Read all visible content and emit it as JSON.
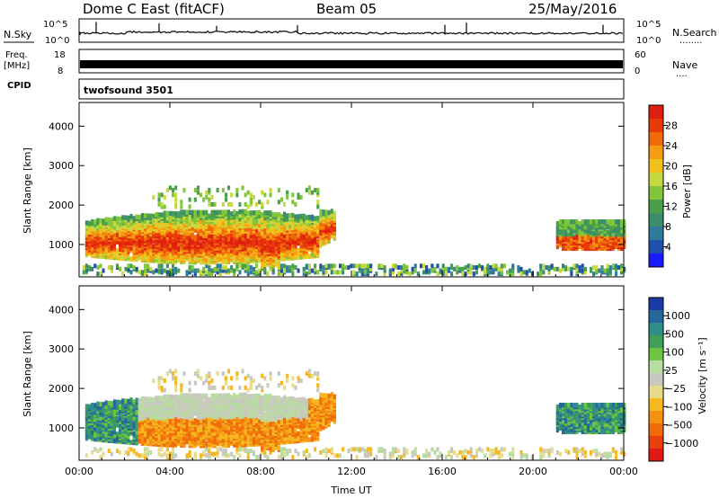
{
  "header": {
    "station": "Dome C East (fitACF)",
    "beam": "Beam 05",
    "date": "25/May/2016"
  },
  "panels": {
    "nsky": {
      "left_label": "N.Sky",
      "right_label": "N.Search",
      "right_label_dots": "........",
      "left_ticks": [
        "10^5",
        "10^0"
      ],
      "right_ticks": [
        "10^5",
        "10^0"
      ]
    },
    "freq": {
      "left_label_top": "Freq.",
      "left_label_unit": "[MHz]",
      "left_label_bottom": "CPID",
      "right_label": "Nave",
      "right_label_dots": "....",
      "left_ticks": [
        "18",
        "8"
      ],
      "right_ticks": [
        "60",
        "0"
      ]
    },
    "cpid": {
      "name": "twofsound 3501"
    }
  },
  "colors": {
    "power": [
      "#1a1aff",
      "#1f4faa",
      "#2e7b9b",
      "#3c8e6a",
      "#4aa04a",
      "#7fc63a",
      "#c8d840",
      "#f2c21a",
      "#f59c10",
      "#f06a0a",
      "#e83a08",
      "#e01e10"
    ],
    "velocity": [
      "#1a3aa8",
      "#24689c",
      "#2f8e86",
      "#3e9e5a",
      "#6cc440",
      "#b9dca0",
      "#c8c8c0",
      "#e6dc8c",
      "#f6b820",
      "#f59010",
      "#f06c0a",
      "#e8400a",
      "#e21818"
    ]
  },
  "chart_data": [
    {
      "type": "heatmap",
      "name": "power",
      "ylabel": "Slant Range [km]",
      "xlabel": "",
      "y_ticks": [
        1000,
        2000,
        3000,
        4000
      ],
      "ylim": [
        180,
        4600
      ],
      "x_ticks": [
        "00:00",
        "04:00",
        "08:00",
        "12:00",
        "16:00",
        "20:00",
        "00:00"
      ],
      "xlim": [
        0,
        24
      ],
      "colorbar": {
        "label": "Power [dB]",
        "ticks": [
          "4",
          "8",
          "12",
          "16",
          "20",
          "24",
          "28"
        ],
        "range": [
          0,
          32
        ]
      }
    },
    {
      "type": "heatmap",
      "name": "velocity",
      "ylabel": "Slant Range [km]",
      "xlabel": "Time UT",
      "y_ticks": [
        1000,
        2000,
        3000,
        4000
      ],
      "ylim": [
        180,
        4600
      ],
      "x_ticks": [
        "00:00",
        "04:00",
        "08:00",
        "12:00",
        "16:00",
        "20:00",
        "00:00"
      ],
      "xlim": [
        0,
        24
      ],
      "colorbar": {
        "label": "Velocity [m s⁻¹]",
        "ticks": [
          "1000",
          "500",
          "100",
          "25",
          "−25",
          "−100",
          "−500",
          "−1000"
        ]
      }
    }
  ]
}
